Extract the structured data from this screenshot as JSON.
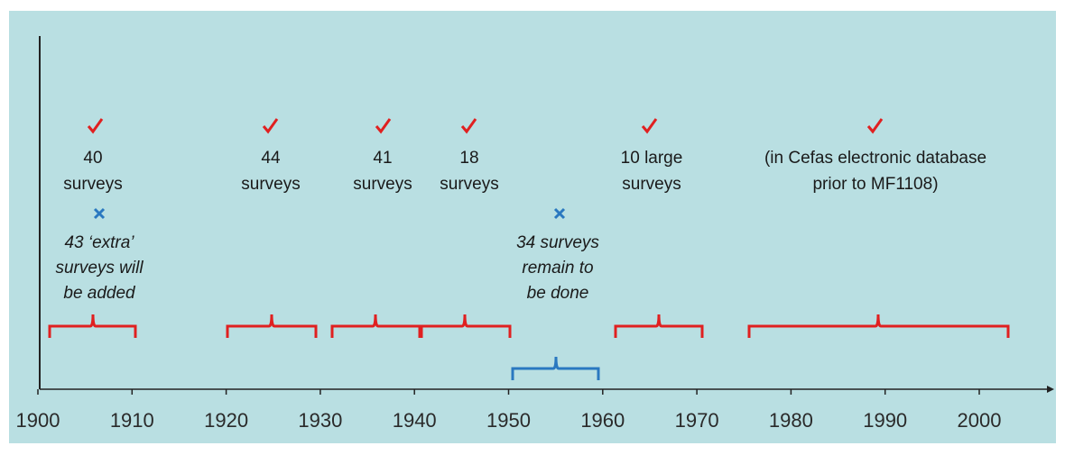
{
  "labels": [
    {
      "lines": [
        "40",
        "surveys"
      ]
    },
    {
      "lines": [
        "44",
        "surveys"
      ]
    },
    {
      "lines": [
        "41",
        "surveys"
      ]
    },
    {
      "lines": [
        "18",
        "surveys"
      ]
    },
    {
      "lines": [
        "10 large",
        "surveys"
      ]
    },
    {
      "lines": [
        "(in Cefas electronic database",
        "prior to MF1108)"
      ]
    }
  ],
  "notes": [
    {
      "lines": [
        "43 ‘extra’",
        "surveys will",
        "be added"
      ]
    },
    {
      "lines": [
        "34 surveys",
        "remain to",
        "be done"
      ]
    }
  ],
  "axis": {
    "ticks": [
      "1900",
      "1910",
      "1920",
      "1930",
      "1940",
      "1950",
      "1960",
      "1970",
      "1980",
      "1990",
      "2000"
    ]
  }
}
